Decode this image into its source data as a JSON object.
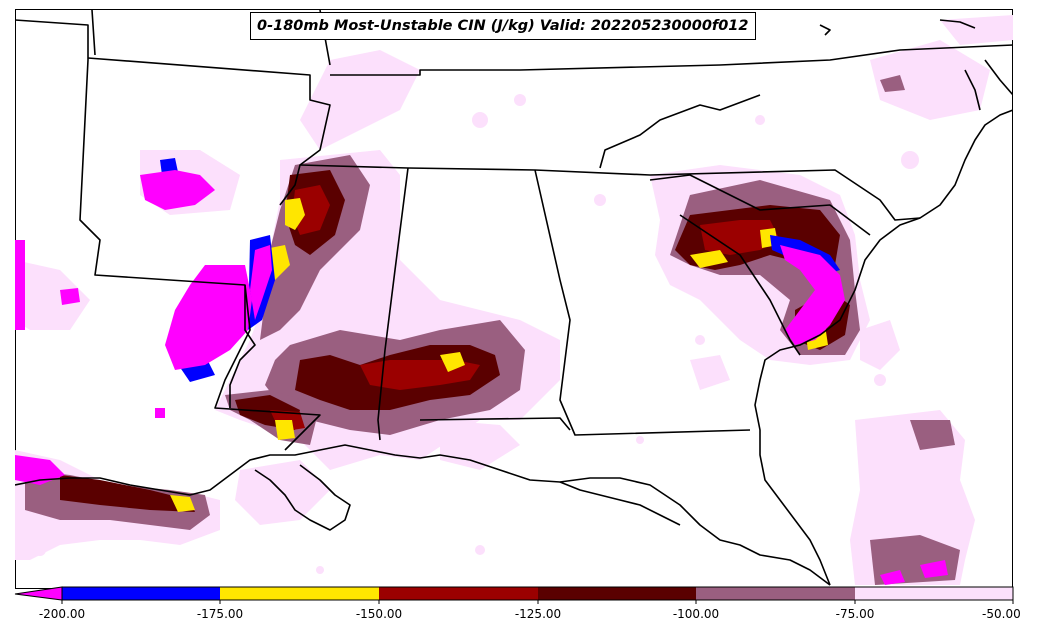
{
  "title": "0-180mb Most-Unstable CIN (J/kg) Valid: 202205230000f012",
  "colorbar": {
    "ticks": [
      "-200.00",
      "-175.00",
      "-150.00",
      "-125.00",
      "-100.00",
      "-75.00",
      "-50.00"
    ],
    "bins": [
      {
        "range": "< -200",
        "color": "#ff00ff"
      },
      {
        "range": "-200 to -175",
        "color": "#0000ff"
      },
      {
        "range": "-175 to -150",
        "color": "#ffe600"
      },
      {
        "range": "-150 to -125",
        "color": "#9b0000"
      },
      {
        "range": "-125 to -100",
        "color": "#5a0000"
      },
      {
        "range": "-100 to -75",
        "color": "#9a5f80"
      },
      {
        "range": "-75 to -50",
        "color": "#fce0fc"
      }
    ],
    "extend": "min"
  },
  "map": {
    "region": "Southeastern United States",
    "field": "0-180mb Most-Unstable CIN",
    "units": "J/kg",
    "valid": "202205230000f012",
    "boundaries": [
      "coastlines",
      "state borders"
    ]
  }
}
